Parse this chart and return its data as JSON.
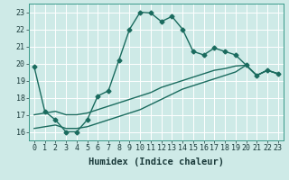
{
  "xlabel": "Humidex (Indice chaleur)",
  "bg_color": "#ceeae7",
  "line_color": "#1a6b5e",
  "grid_color": "#ffffff",
  "xlim": [
    -0.5,
    23.5
  ],
  "ylim": [
    15.5,
    23.5
  ],
  "xticks": [
    0,
    1,
    2,
    3,
    4,
    5,
    6,
    7,
    8,
    9,
    10,
    11,
    12,
    13,
    14,
    15,
    16,
    17,
    18,
    19,
    20,
    21,
    22,
    23
  ],
  "yticks": [
    16,
    17,
    18,
    19,
    20,
    21,
    22,
    23
  ],
  "series1_x": [
    0,
    1,
    2,
    3,
    4,
    5,
    6,
    7,
    8,
    9,
    10,
    11,
    12,
    13,
    14,
    15,
    16,
    17,
    18,
    19,
    20,
    21,
    22,
    23
  ],
  "series1_y": [
    19.8,
    17.2,
    16.7,
    16.0,
    16.0,
    16.7,
    18.1,
    18.4,
    20.2,
    22.0,
    23.0,
    22.95,
    22.45,
    22.75,
    22.0,
    20.7,
    20.5,
    20.9,
    20.7,
    20.5,
    19.9,
    19.3,
    19.6,
    19.4
  ],
  "series2_x": [
    0,
    1,
    2,
    3,
    4,
    5,
    6,
    7,
    8,
    9,
    10,
    11,
    12,
    13,
    14,
    15,
    16,
    17,
    18,
    19,
    20,
    21,
    22,
    23
  ],
  "series2_y": [
    17.0,
    17.1,
    17.2,
    17.0,
    17.0,
    17.1,
    17.3,
    17.5,
    17.7,
    17.9,
    18.1,
    18.3,
    18.6,
    18.8,
    19.0,
    19.2,
    19.4,
    19.6,
    19.7,
    19.85,
    19.9,
    19.3,
    19.6,
    19.4
  ],
  "series3_x": [
    0,
    1,
    2,
    3,
    4,
    5,
    6,
    7,
    8,
    9,
    10,
    11,
    12,
    13,
    14,
    15,
    16,
    17,
    18,
    19,
    20,
    21,
    22,
    23
  ],
  "series3_y": [
    16.2,
    16.3,
    16.4,
    16.2,
    16.2,
    16.3,
    16.5,
    16.7,
    16.9,
    17.1,
    17.3,
    17.6,
    17.9,
    18.2,
    18.5,
    18.7,
    18.9,
    19.1,
    19.3,
    19.5,
    19.9,
    19.3,
    19.6,
    19.4
  ],
  "marker": "D",
  "markersize": 2.5,
  "linewidth": 1.0,
  "xlabel_fontsize": 7.5,
  "tick_fontsize": 6.0
}
